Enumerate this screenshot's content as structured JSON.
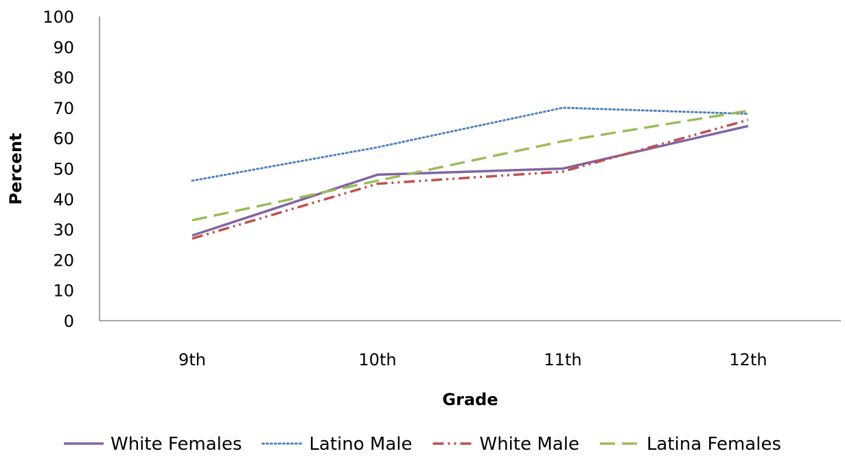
{
  "chart_data": {
    "type": "line",
    "title": "",
    "xlabel": "Grade",
    "ylabel": "Percent",
    "categories": [
      "9th",
      "10th",
      "11th",
      "12th"
    ],
    "ylim": [
      0,
      100
    ],
    "yticks": [
      0,
      10,
      20,
      30,
      40,
      50,
      60,
      70,
      80,
      90,
      100
    ],
    "grid": false,
    "legend_position": "bottom",
    "series": [
      {
        "name": "White Females",
        "values": [
          28,
          48,
          50,
          64
        ],
        "color": "#8064A2",
        "style": "solid"
      },
      {
        "name": "Latino Male",
        "values": [
          46,
          57,
          70,
          68
        ],
        "color": "#4F81BD",
        "style": "dotted"
      },
      {
        "name": "White Male",
        "values": [
          27,
          45,
          49,
          66
        ],
        "color": "#C0504D",
        "style": "dash-dot-dot"
      },
      {
        "name": "Latina Females",
        "values": [
          33,
          46,
          59,
          69
        ],
        "color": "#9BBB59",
        "style": "long-dash"
      }
    ]
  }
}
